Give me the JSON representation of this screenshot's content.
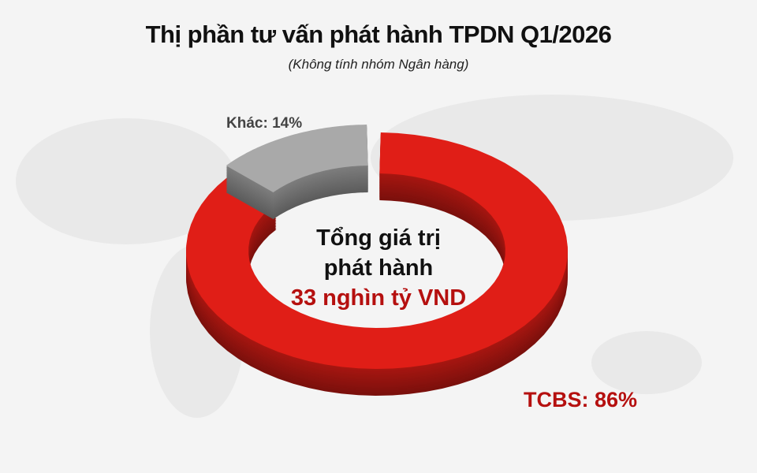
{
  "chart_data": {
    "type": "pie",
    "variant": "3d-donut",
    "title": "Thị phần tư vấn phát hành TPDN Q1/2026",
    "subtitle": "(Không tính nhóm Ngân hàng)",
    "slices": [
      {
        "name": "TCBS",
        "value": 86,
        "label": "TCBS: 86%",
        "color": "#e01e17"
      },
      {
        "name": "Khác",
        "value": 14,
        "label": "Khác: 14%",
        "color": "#a9a9a9"
      }
    ],
    "center_text": {
      "line1": "Tổng giá trị",
      "line2": "phát hành",
      "value": "33 nghìn tỷ VND"
    }
  }
}
